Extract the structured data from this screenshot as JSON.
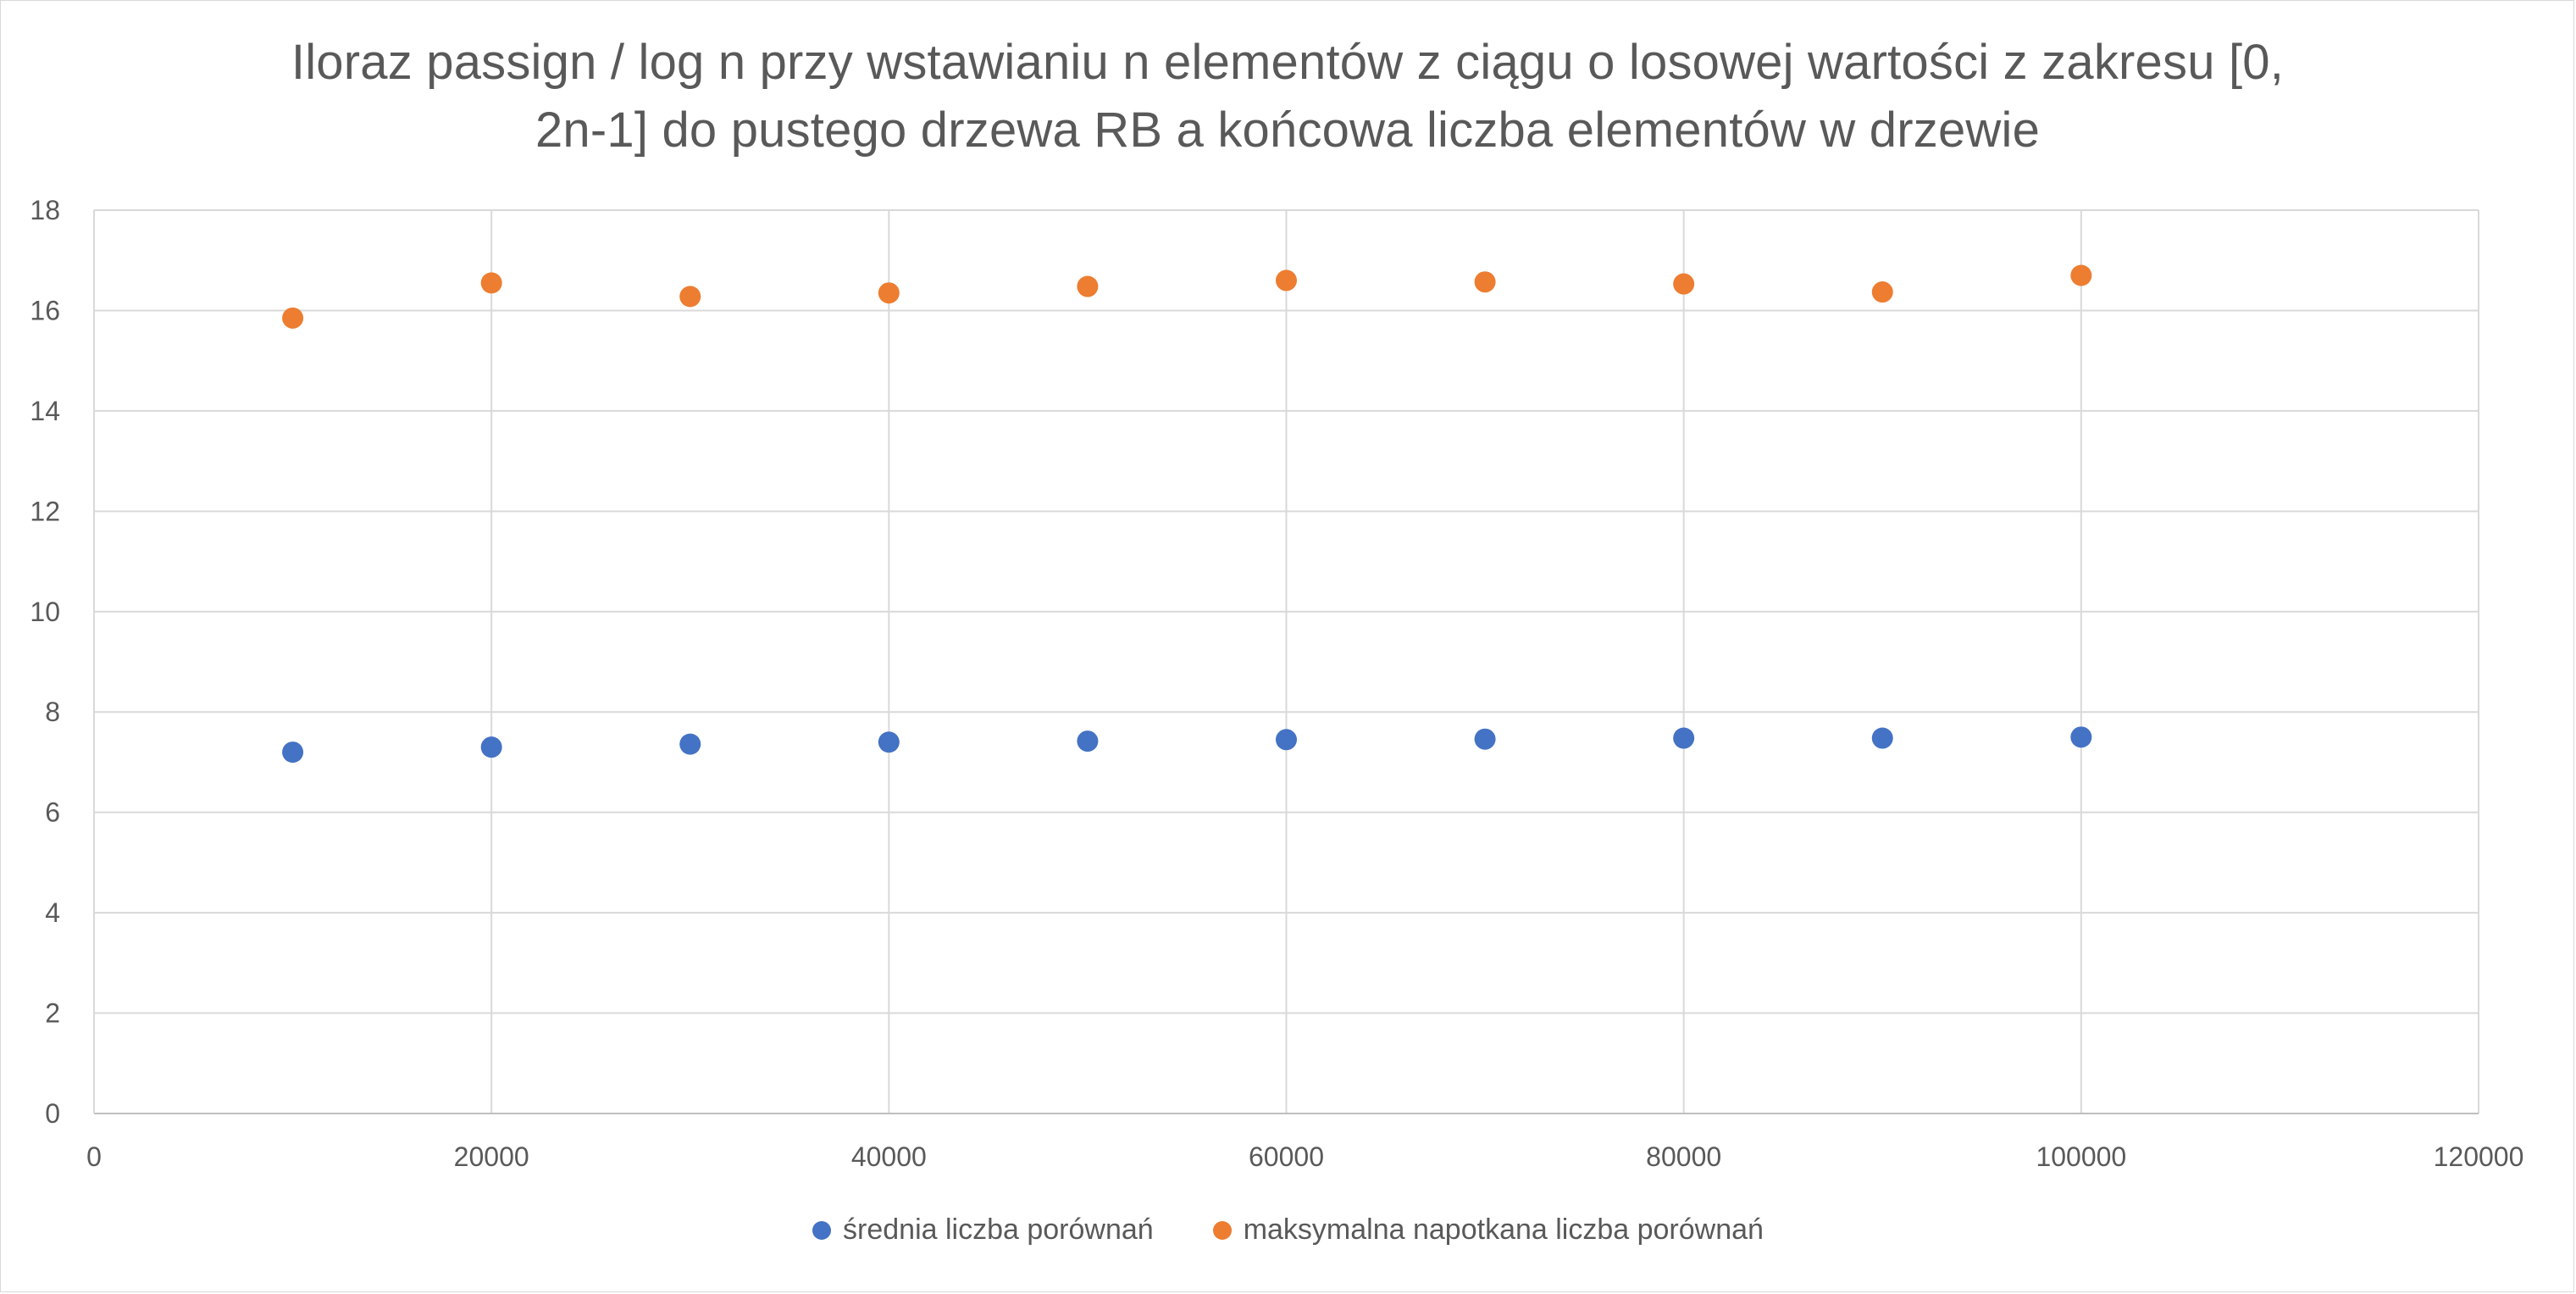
{
  "chart_data": {
    "type": "scatter",
    "title": "Iloraz passign / log n przy wstawianiu n elementów z ciągu o losowej wartości z zakresu [0, 2n-1] do pustego drzewa RB a końcowa liczba elementów w drzewie",
    "title_lines": [
      "Iloraz passign / log n przy wstawianiu n elementów z ciągu o losowej wartości z zakresu [0,",
      "2n-1] do pustego drzewa RB a końcowa liczba elementów w drzewie"
    ],
    "xlabel": "",
    "ylabel": "",
    "xlim": [
      0,
      120000
    ],
    "ylim": [
      0,
      18
    ],
    "x_ticks": [
      0,
      20000,
      40000,
      60000,
      80000,
      100000,
      120000
    ],
    "y_ticks": [
      0,
      2,
      4,
      6,
      8,
      10,
      12,
      14,
      16,
      18
    ],
    "grid": true,
    "legend_position": "bottom",
    "x": [
      10000,
      20000,
      30000,
      40000,
      50000,
      60000,
      70000,
      80000,
      90000,
      100000
    ],
    "series": [
      {
        "name": "średnia liczba porównań",
        "color": "#4472c4",
        "values": [
          7.2,
          7.3,
          7.36,
          7.4,
          7.42,
          7.45,
          7.46,
          7.48,
          7.48,
          7.5
        ]
      },
      {
        "name": "maksymalna napotkana liczba porównań",
        "color": "#ed7d31",
        "values": [
          15.85,
          16.55,
          16.28,
          16.35,
          16.48,
          16.6,
          16.57,
          16.53,
          16.37,
          16.7
        ]
      }
    ]
  }
}
